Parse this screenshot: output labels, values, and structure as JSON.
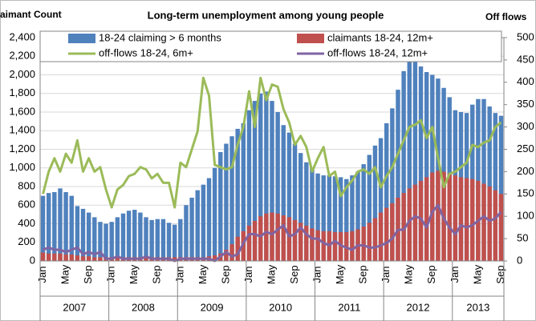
{
  "chart_data": {
    "type": "bar-line",
    "title": "Long-term unemployment among young people",
    "y_label": "Claimant Count",
    "y2_label": "Off flows",
    "categories": [
      "Jan",
      null,
      null,
      null,
      "May",
      null,
      null,
      null,
      "Sep",
      null,
      null,
      null,
      "Jan",
      null,
      null,
      null,
      "May",
      null,
      null,
      null,
      "Sep",
      null,
      null,
      null,
      "Jan",
      null,
      null,
      null,
      "May",
      null,
      null,
      null,
      "Sep",
      null,
      null,
      null,
      "Jan",
      null,
      null,
      null,
      "May",
      null,
      null,
      null,
      "Sep",
      null,
      null,
      null,
      "Jan",
      null,
      null,
      null,
      "May",
      null,
      null,
      null,
      "Sep",
      null,
      null,
      null,
      "Jan",
      null,
      null,
      null,
      "May",
      null,
      null,
      null,
      "Sep",
      null,
      null,
      null,
      "Jan",
      null,
      null,
      null,
      "May",
      null,
      null,
      null,
      "Sep"
    ],
    "year_groups": [
      "2007",
      "2008",
      "2009",
      "2010",
      "2011",
      "2012",
      "2013"
    ],
    "ylim": [
      0,
      2400
    ],
    "yticks": [
      0,
      200,
      400,
      600,
      800,
      {
        "value": 1000,
        "label": "1,000"
      },
      {
        "value": 1200,
        "label": "1,200"
      },
      {
        "value": 1400,
        "label": "1,400"
      },
      {
        "value": 1600,
        "label": "1,600"
      },
      {
        "value": 1800,
        "label": "1,800"
      },
      {
        "value": 2000,
        "label": "2,000"
      },
      {
        "value": 2200,
        "label": "2,200"
      },
      {
        "value": 2400,
        "label": "2,400"
      }
    ],
    "y2lim": [
      0,
      500
    ],
    "y2ticks": [
      0,
      50,
      100,
      150,
      200,
      250,
      300,
      350,
      400,
      450,
      500
    ],
    "grid": true,
    "legend": "top",
    "series": [
      {
        "name": "18-24 claiming > 6 months",
        "kind": "bar",
        "color": "#4f81bd",
        "values": [
          700,
          730,
          740,
          780,
          740,
          700,
          590,
          560,
          520,
          470,
          420,
          400,
          420,
          470,
          510,
          540,
          550,
          520,
          470,
          440,
          450,
          450,
          410,
          390,
          450,
          600,
          680,
          760,
          820,
          890,
          1000,
          1170,
          1260,
          1340,
          1420,
          1480,
          1620,
          1720,
          1800,
          1820,
          1720,
          1600,
          1460,
          1380,
          1260,
          1160,
          1060,
          1000,
          940,
          920,
          920,
          910,
          900,
          880,
          920,
          960,
          1040,
          1140,
          1240,
          1320,
          1480,
          1640,
          1840,
          2040,
          2150,
          2160,
          2090,
          2030,
          2000,
          1960,
          1860,
          1760,
          1620,
          1600,
          1590,
          1680,
          1740,
          1740,
          1660,
          1590,
          1560
        ]
      },
      {
        "name": "claimants 18-24, 12m+",
        "kind": "bar",
        "color": "#c0504d",
        "values": [
          90,
          80,
          80,
          80,
          70,
          70,
          60,
          50,
          50,
          40,
          40,
          40,
          40,
          40,
          40,
          40,
          40,
          40,
          40,
          40,
          40,
          40,
          40,
          40,
          40,
          40,
          40,
          40,
          40,
          50,
          60,
          80,
          120,
          180,
          260,
          320,
          380,
          430,
          480,
          510,
          520,
          510,
          490,
          470,
          440,
          410,
          380,
          350,
          330,
          320,
          320,
          310,
          310,
          310,
          320,
          340,
          370,
          410,
          460,
          520,
          570,
          620,
          680,
          730,
          780,
          820,
          860,
          900,
          950,
          970,
          960,
          940,
          920,
          900,
          890,
          880,
          860,
          830,
          800,
          760,
          720
        ]
      },
      {
        "name": "off-flows 18-24, 6m+",
        "kind": "line",
        "axis": "y2",
        "color": "#9bbb59",
        "values": [
          150,
          200,
          230,
          200,
          240,
          220,
          270,
          200,
          230,
          200,
          210,
          160,
          120,
          160,
          170,
          190,
          195,
          210,
          205,
          185,
          195,
          175,
          175,
          120,
          220,
          210,
          250,
          290,
          410,
          370,
          215,
          210,
          205,
          210,
          260,
          300,
          380,
          300,
          410,
          360,
          395,
          390,
          340,
          310,
          260,
          280,
          255,
          200,
          230,
          255,
          190,
          200,
          145,
          165,
          180,
          200,
          205,
          195,
          210,
          165,
          190,
          210,
          240,
          270,
          300,
          305,
          315,
          275,
          300,
          230,
          165,
          195,
          200,
          210,
          220,
          260,
          255,
          265,
          270,
          300,
          310
        ]
      },
      {
        "name": "off-flows 18-24, 12m+",
        "kind": "line",
        "axis": "y2",
        "color": "#8064a2",
        "values": [
          25,
          30,
          25,
          25,
          20,
          25,
          30,
          15,
          20,
          15,
          20,
          5,
          5,
          10,
          5,
          5,
          5,
          5,
          10,
          5,
          5,
          5,
          5,
          0,
          5,
          5,
          5,
          5,
          5,
          5,
          0,
          10,
          20,
          10,
          15,
          40,
          60,
          60,
          55,
          65,
          60,
          70,
          80,
          55,
          60,
          75,
          60,
          50,
          50,
          40,
          35,
          45,
          35,
          30,
          25,
          35,
          35,
          30,
          30,
          35,
          40,
          50,
          70,
          70,
          90,
          100,
          95,
          75,
          110,
          125,
          95,
          75,
          60,
          80,
          75,
          80,
          90,
          100,
          90,
          95,
          110
        ]
      }
    ]
  }
}
